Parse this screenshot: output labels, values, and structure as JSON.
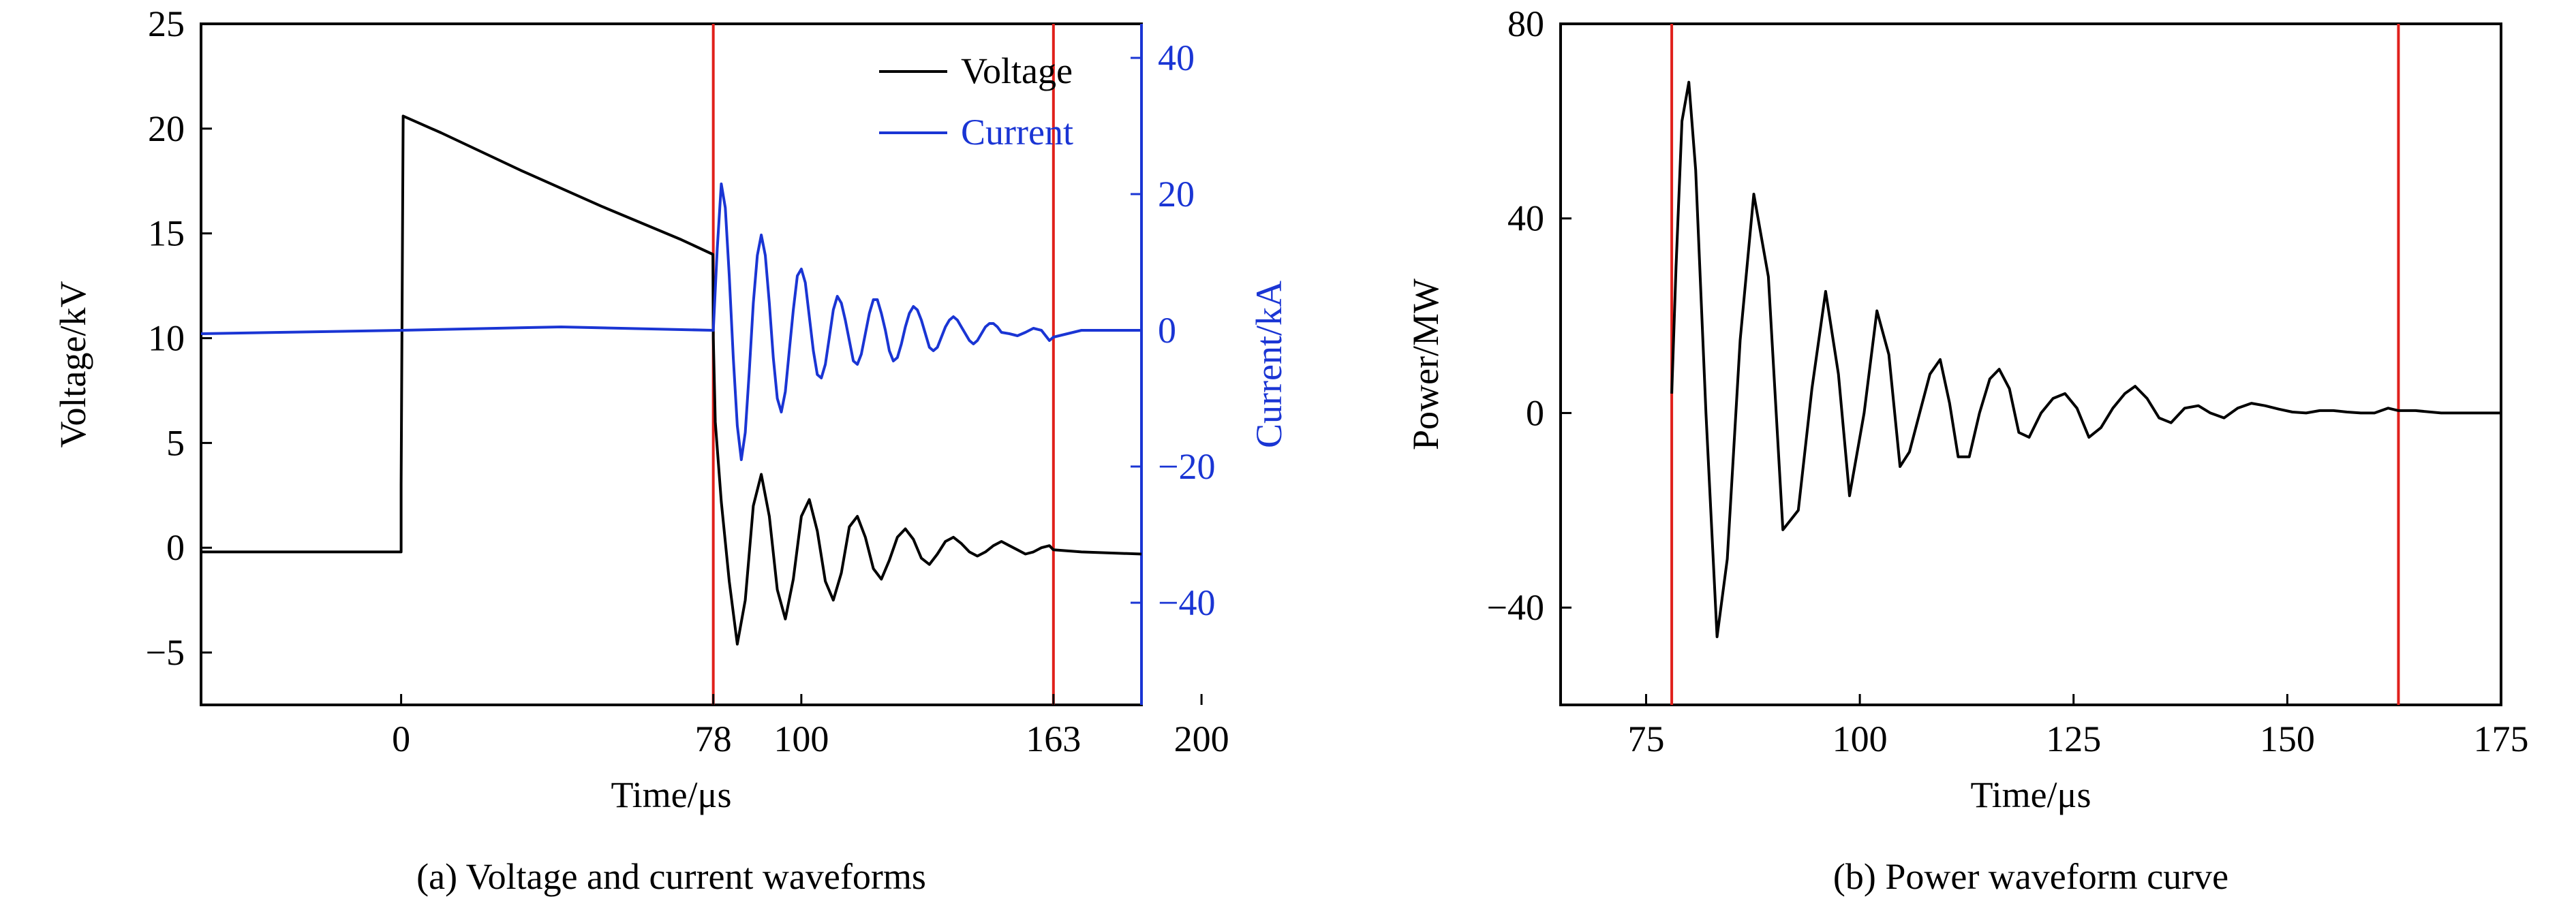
{
  "colors": {
    "voltage": "#000000",
    "current": "#1a35d4",
    "marker": "#e0201b",
    "axis": "#000000",
    "right_axis": "#1a35d4"
  },
  "chart_data": [
    {
      "id": "a",
      "type": "line",
      "caption": "(a) Voltage and current waveforms",
      "xlabel": "Time/μs",
      "ylabel": "Voltage/kV",
      "ylabel_right": "Current/kA",
      "xlim": [
        -50,
        185
      ],
      "ylim": [
        -7.5,
        25
      ],
      "ylim_right": [
        -55,
        45
      ],
      "x_ticks": [
        "0",
        "78",
        "100",
        "163",
        "200"
      ],
      "x_tick_values": [
        0,
        78,
        100,
        163,
        200
      ],
      "y_ticks": [
        "−5",
        "0",
        "5",
        "10",
        "15",
        "20",
        "25"
      ],
      "y_tick_values": [
        -5,
        0,
        5,
        10,
        15,
        20,
        25
      ],
      "y_ticks_right": [
        "−40",
        "−20",
        "0",
        "20",
        "40"
      ],
      "y_tick_values_right": [
        -40,
        -20,
        0,
        20,
        40
      ],
      "markers_x": [
        78,
        163
      ],
      "legend": {
        "position": "top-right",
        "entries": [
          "Voltage",
          "Current"
        ]
      },
      "series": [
        {
          "name": "Voltage",
          "axis": "left",
          "x": [
            -50,
            -10,
            0,
            0,
            0.5,
            10,
            30,
            50,
            70,
            77.9,
            78,
            78.5,
            80,
            82,
            84,
            86,
            88,
            90,
            92,
            94,
            96,
            98,
            100,
            102,
            104,
            106,
            108,
            110,
            112,
            114,
            116,
            118,
            120,
            122,
            124,
            126,
            128,
            130,
            132,
            134,
            136,
            138,
            140,
            142,
            144,
            146,
            148,
            150,
            152,
            154,
            156,
            158,
            160,
            162,
            163,
            170,
            185
          ],
          "values": [
            -0.2,
            -0.2,
            -0.2,
            3.0,
            20.6,
            19.8,
            18.0,
            16.3,
            14.7,
            14.0,
            10,
            6.0,
            2.2,
            -1.6,
            -4.6,
            -2.5,
            2.0,
            3.5,
            1.5,
            -2.0,
            -3.4,
            -1.5,
            1.5,
            2.3,
            0.8,
            -1.6,
            -2.5,
            -1.2,
            1.0,
            1.5,
            0.5,
            -1.0,
            -1.5,
            -0.6,
            0.5,
            0.9,
            0.4,
            -0.5,
            -0.8,
            -0.3,
            0.3,
            0.5,
            0.2,
            -0.2,
            -0.4,
            -0.2,
            0.1,
            0.3,
            0.1,
            -0.1,
            -0.3,
            -0.2,
            0.0,
            0.1,
            -0.1,
            -0.2,
            -0.3
          ]
        },
        {
          "name": "Current",
          "axis": "right",
          "x": [
            -50,
            0,
            40,
            78,
            79,
            80,
            81,
            82,
            83,
            84,
            85,
            86,
            87,
            88,
            89,
            90,
            91,
            92,
            93,
            94,
            95,
            96,
            97,
            98,
            99,
            100,
            101,
            102,
            103,
            104,
            105,
            106,
            107,
            108,
            109,
            110,
            111,
            112,
            113,
            114,
            115,
            116,
            117,
            118,
            119,
            120,
            121,
            122,
            123,
            124,
            125,
            126,
            127,
            128,
            129,
            130,
            131,
            132,
            133,
            134,
            135,
            136,
            137,
            138,
            139,
            140,
            141,
            142,
            143,
            144,
            145,
            146,
            147,
            148,
            149,
            150,
            152,
            154,
            156,
            158,
            160,
            162,
            163,
            170,
            185
          ],
          "values": [
            -0.5,
            0.0,
            0.5,
            0.0,
            12,
            21.5,
            18,
            8,
            -4,
            -14,
            -19,
            -15,
            -6,
            4,
            11,
            14,
            11,
            4,
            -4,
            -10,
            -12,
            -9,
            -3,
            3,
            8,
            9,
            7,
            2,
            -3,
            -6.5,
            -7,
            -5,
            -1,
            3,
            5,
            4,
            1.5,
            -1.5,
            -4.5,
            -5,
            -3.5,
            -0.5,
            2.5,
            4.5,
            4.5,
            2.5,
            0,
            -3,
            -4.5,
            -4,
            -2,
            0.5,
            2.5,
            3.5,
            3,
            1.5,
            -0.5,
            -2.5,
            -3,
            -2.5,
            -1,
            0.5,
            1.5,
            2,
            1.5,
            0.5,
            -0.5,
            -1.5,
            -2,
            -1.5,
            -0.5,
            0.5,
            1,
            1,
            0.5,
            -0.3,
            -0.5,
            -0.8,
            -0.3,
            0.3,
            0.0,
            -1.5,
            -1.0,
            0.0,
            0.0
          ]
        }
      ]
    },
    {
      "id": "b",
      "type": "line",
      "caption": "(b) Power waveform curve",
      "xlabel": "Time/μs",
      "ylabel": "Power/MW",
      "xlim": [
        65,
        175
      ],
      "ylim": [
        -60,
        80
      ],
      "x_ticks": [
        "75",
        "100",
        "125",
        "150",
        "175"
      ],
      "x_tick_values": [
        75,
        100,
        125,
        150,
        175
      ],
      "y_ticks": [
        "−40",
        "0",
        "40",
        "80"
      ],
      "y_tick_values": [
        -40,
        0,
        40,
        80
      ],
      "markers_x": [
        78,
        163
      ],
      "series": [
        {
          "name": "",
          "x": [
            78,
            78.5,
            79.2,
            80,
            80.8,
            82,
            83.3,
            84.5,
            86,
            87.6,
            89.3,
            91,
            92.8,
            94.4,
            96,
            97.5,
            98.8,
            100.5,
            102,
            103.4,
            104.7,
            105.8,
            107,
            108.2,
            109.4,
            110.5,
            111.5,
            112.8,
            114,
            115.2,
            116.3,
            117.5,
            118.6,
            119.8,
            121.2,
            122.6,
            124,
            125.4,
            126.8,
            128.2,
            129.6,
            131,
            132.2,
            133.6,
            135,
            136.4,
            138,
            139.6,
            141,
            142.6,
            144.2,
            145.8,
            147.4,
            149,
            150.6,
            152.2,
            153.8,
            155.4,
            157,
            158.6,
            160.2,
            161.8,
            163,
            165,
            168,
            171,
            175
          ],
          "values": [
            4,
            30,
            60,
            68,
            50,
            0,
            -46,
            -30,
            15,
            45,
            28,
            -24,
            -20,
            5,
            25,
            8,
            -17,
            0,
            21,
            12,
            -11,
            -8,
            0,
            8,
            11,
            2,
            -9,
            -9,
            0,
            7,
            9,
            5,
            -4,
            -5,
            0,
            3,
            4,
            1,
            -5,
            -3,
            1,
            4,
            5.5,
            3,
            -1,
            -2,
            1,
            1.5,
            0,
            -1,
            1,
            2,
            1.5,
            0.8,
            0.2,
            0,
            0.5,
            0.5,
            0.2,
            0,
            0,
            1,
            0.5,
            0.5,
            0,
            0,
            0
          ]
        }
      ]
    }
  ]
}
